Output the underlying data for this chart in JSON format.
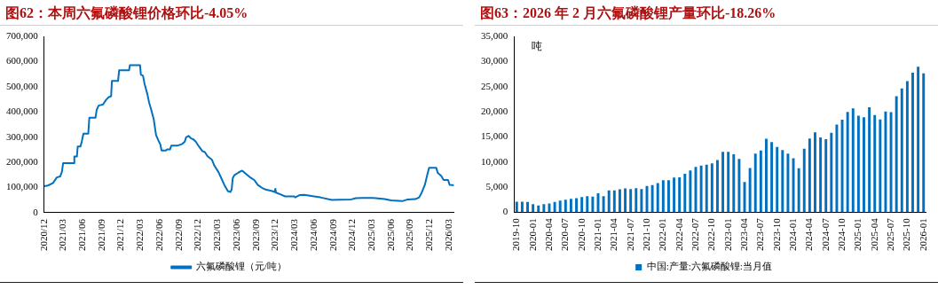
{
  "chart_data": [
    {
      "type": "line",
      "title": "图62：本周六氟磷酸锂价格环比-4.05%",
      "xlim": [
        "2020-12-01",
        "2026-03-27"
      ],
      "xticks": [
        {
          "value": "2020-12",
          "label": "2020/12"
        },
        {
          "value": "2021-03",
          "label": "2021/03"
        },
        {
          "value": "2021-06",
          "label": "2021/06"
        },
        {
          "value": "2021-09",
          "label": "2021/09"
        },
        {
          "value": "2021-12",
          "label": "2021/12"
        },
        {
          "value": "2022-03",
          "label": "2022/03"
        },
        {
          "value": "2022-06",
          "label": "2022/06"
        },
        {
          "value": "2022-09",
          "label": "2022/09"
        },
        {
          "value": "2022-12",
          "label": "2022/12"
        },
        {
          "value": "2023-03",
          "label": "2023/03"
        },
        {
          "value": "2023-06",
          "label": "2023/06"
        },
        {
          "value": "2023-09",
          "label": "2023/09"
        },
        {
          "value": "2023-12",
          "label": "2023/12"
        },
        {
          "value": "2024-03",
          "label": "2024/03"
        },
        {
          "value": "2024-06",
          "label": "2024/06"
        },
        {
          "value": "2024-09",
          "label": "2024/09"
        },
        {
          "value": "2024-12",
          "label": "2024/12"
        },
        {
          "value": "2025-03",
          "label": "2025/03"
        },
        {
          "value": "2025-06",
          "label": "2025/06"
        },
        {
          "value": "2025-09",
          "label": "2025/09"
        },
        {
          "value": "2025-12",
          "label": "2025/12"
        },
        {
          "value": "2026-03",
          "label": "2026/03"
        }
      ],
      "ylim": [
        0,
        700000
      ],
      "yticks": [
        0,
        {
          "value": 100000,
          "label": "100,000"
        },
        {
          "value": 200000,
          "label": "200,000"
        },
        {
          "value": 300000,
          "label": "300,000"
        },
        {
          "value": 400000,
          "label": "400,000"
        },
        {
          "value": 500000,
          "label": "500,000"
        },
        {
          "value": 600000,
          "label": "600,000"
        },
        {
          "value": 700000,
          "label": "700,000"
        }
      ],
      "legend": "bottom",
      "marker": "none",
      "line_style": "solid",
      "series": [
        {
          "name": "六氟磷酸锂（元/吨）",
          "color": "#0070c0",
          "x": [
            "2020-12-01",
            "2020-12-19",
            "2021-01-12",
            "2021-01-30",
            "2021-02-15",
            "2021-02-23",
            "2021-03-01",
            "2021-04-20",
            "2021-04-23",
            "2021-05-05",
            "2021-05-09",
            "2021-05-22",
            "2021-05-28",
            "2021-06-05",
            "2021-06-28",
            "2021-07-03",
            "2021-08-01",
            "2021-08-07",
            "2021-08-16",
            "2021-09-06",
            "2021-09-21",
            "2021-10-03",
            "2021-10-14",
            "2021-10-18",
            "2021-11-16",
            "2021-11-21",
            "2022-01-07",
            "2022-01-11",
            "2022-02-28",
            "2022-03-04",
            "2022-03-14",
            "2022-03-22",
            "2022-04-04",
            "2022-04-12",
            "2022-04-22",
            "2022-05-04",
            "2022-05-15",
            "2022-05-27",
            "2022-06-04",
            "2022-06-10",
            "2022-06-30",
            "2022-07-06",
            "2022-07-20",
            "2022-07-26",
            "2022-08-23",
            "2022-09-16",
            "2022-09-28",
            "2022-10-04",
            "2022-10-16",
            "2022-10-28",
            "2022-11-08",
            "2022-11-19",
            "2022-12-04",
            "2022-12-21",
            "2023-01-01",
            "2023-01-13",
            "2023-02-04",
            "2023-02-15",
            "2023-03-06",
            "2023-03-20",
            "2023-04-04",
            "2023-04-20",
            "2023-05-02",
            "2023-05-08",
            "2023-05-13",
            "2023-05-21",
            "2023-06-08",
            "2023-06-26",
            "2023-07-04",
            "2023-08-01",
            "2023-08-24",
            "2023-09-08",
            "2023-09-28",
            "2023-10-16",
            "2023-11-16",
            "2023-11-28",
            "2023-12-01",
            "2023-12-04",
            "2023-12-24",
            "2024-01-16",
            "2024-02-28",
            "2024-03-04",
            "2024-03-24",
            "2024-04-16",
            "2024-06-01",
            "2024-07-01",
            "2024-08-24",
            "2024-10-01",
            "2024-11-24",
            "2024-12-16",
            "2025-01-16",
            "2025-03-09",
            "2025-05-01",
            "2025-06-01",
            "2025-07-24",
            "2025-08-19",
            "2025-09-24",
            "2025-10-12",
            "2025-10-24",
            "2025-11-08",
            "2025-11-19",
            "2025-11-28",
            "2026-01-01",
            "2026-01-08",
            "2026-01-24",
            "2026-02-05",
            "2026-02-26",
            "2026-03-05",
            "2026-03-25"
          ],
          "values": [
            105000,
            108000,
            118000,
            140000,
            144000,
            162000,
            197000,
            197000,
            223000,
            223000,
            263000,
            263000,
            282000,
            314000,
            314000,
            377000,
            377000,
            409000,
            425000,
            430000,
            449000,
            459000,
            462000,
            523000,
            523000,
            565000,
            565000,
            586000,
            586000,
            548000,
            544000,
            510000,
            470000,
            438000,
            409000,
            371000,
            308000,
            285000,
            272000,
            247000,
            247000,
            251000,
            251000,
            266000,
            266000,
            273000,
            282000,
            299000,
            305000,
            295000,
            291000,
            282000,
            263000,
            244000,
            241000,
            225000,
            210000,
            187000,
            162000,
            137000,
            109000,
            86000,
            82000,
            92000,
            137000,
            149000,
            159000,
            167000,
            162000,
            142000,
            129000,
            111000,
            99000,
            92000,
            86000,
            82000,
            95000,
            80000,
            73000,
            65000,
            65000,
            61000,
            70000,
            71000,
            65000,
            61000,
            51000,
            52000,
            53000,
            58000,
            59000,
            59000,
            54000,
            49000,
            46000,
            53000,
            54000,
            61000,
            80000,
            111000,
            149000,
            178000,
            178000,
            158000,
            147000,
            130000,
            130000,
            111000,
            109000
          ]
        }
      ]
    },
    {
      "type": "bar",
      "title": "图63：2026 年 2 月六氟磷酸锂产量环比-18.26%",
      "ylabel": "吨",
      "categories": [
        "2019-10",
        null,
        null,
        "2020-01",
        null,
        null,
        "2020-04",
        null,
        null,
        "2020-07",
        null,
        null,
        "2020-10",
        null,
        null,
        "2021-01",
        null,
        null,
        "2021-04",
        null,
        null,
        "2021-07",
        null,
        null,
        "2021-10",
        null,
        null,
        "2022-01",
        null,
        null,
        "2022-04",
        null,
        null,
        "2022-07",
        null,
        null,
        "2022-10",
        null,
        null,
        "2023-01",
        null,
        null,
        "2023-04",
        null,
        null,
        "2023-07",
        null,
        null,
        "2023-10",
        null,
        null,
        "2024-01",
        null,
        null,
        "2024-04",
        null,
        null,
        "2024-07",
        null,
        null,
        "2024-10",
        null,
        null,
        "2025-01",
        null,
        null,
        "2025-04",
        null,
        null,
        "2025-07",
        null,
        null,
        "2025-10",
        null,
        null,
        "2026-01"
      ],
      "ylim": [
        0,
        35000
      ],
      "yticks": [
        0,
        {
          "value": 5000,
          "label": "5,000"
        },
        {
          "value": 10000,
          "label": "10,000"
        },
        {
          "value": 15000,
          "label": "15,000"
        },
        {
          "value": 20000,
          "label": "20,000"
        },
        {
          "value": 25000,
          "label": "25,000"
        },
        {
          "value": 30000,
          "label": "30,000"
        },
        {
          "value": 35000,
          "label": "35,000"
        }
      ],
      "legend": "bottom",
      "series": [
        {
          "name": "中国:产量:六氟磷酸锂:当月值",
          "color": "#0070c0",
          "values": [
            2100,
            2100,
            2050,
            1600,
            1350,
            1600,
            1750,
            2050,
            2300,
            2500,
            2650,
            2800,
            3000,
            3200,
            3100,
            3750,
            3200,
            4350,
            4350,
            4550,
            4750,
            4600,
            4800,
            4600,
            5200,
            5400,
            5800,
            6350,
            6350,
            6900,
            6950,
            7650,
            8300,
            9000,
            9300,
            9450,
            9700,
            10400,
            12000,
            12000,
            11550,
            10600,
            6000,
            8800,
            11650,
            12300,
            14600,
            13950,
            13000,
            12350,
            11650,
            10750,
            8750,
            12650,
            14650,
            15900,
            14900,
            14550,
            15800,
            17450,
            18400,
            19950,
            20650,
            19200,
            18900,
            20900,
            19350,
            18450,
            20050,
            19900,
            23100,
            24650,
            26100,
            27750,
            28950,
            27650
          ]
        }
      ]
    }
  ]
}
